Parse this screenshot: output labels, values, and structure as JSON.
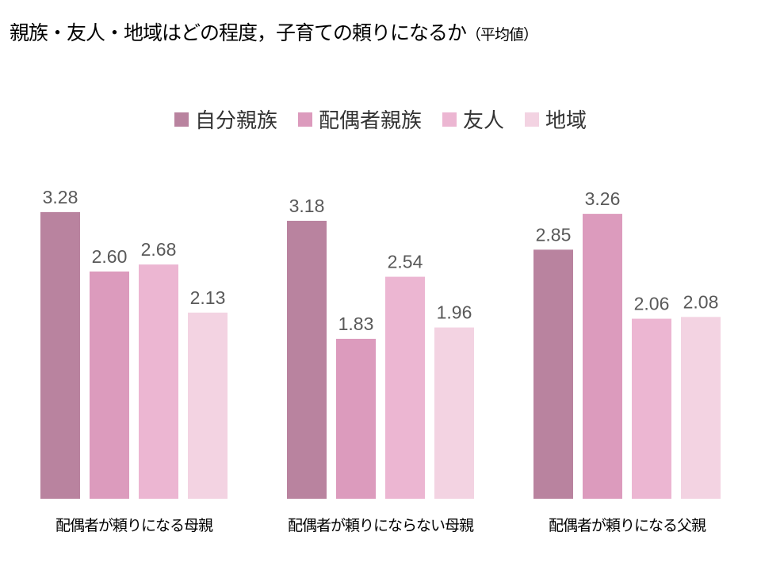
{
  "chart_data": {
    "type": "bar",
    "title": "親族・友人・地域はどの程度，子育ての頼りになるか",
    "subtitle": "（平均値）",
    "categories": [
      "配偶者が頼りになる母親",
      "配偶者が頼りにならない母親",
      "配偶者が頼りになる父親"
    ],
    "series": [
      {
        "name": "自分親族",
        "color": "#b9839f",
        "values": [
          3.28,
          3.18,
          2.85
        ]
      },
      {
        "name": "配偶者親族",
        "color": "#dc9bbd",
        "values": [
          2.6,
          1.83,
          3.26
        ]
      },
      {
        "name": "友人",
        "color": "#ecb6d2",
        "values": [
          2.68,
          2.54,
          2.06
        ]
      },
      {
        "name": "地域",
        "color": "#f3d3e2",
        "values": [
          2.13,
          1.96,
          2.08
        ]
      }
    ],
    "xlabel": "",
    "ylabel": "",
    "ylim": [
      0,
      4
    ],
    "grid": false,
    "legend": "top-center",
    "data_labels": true
  }
}
